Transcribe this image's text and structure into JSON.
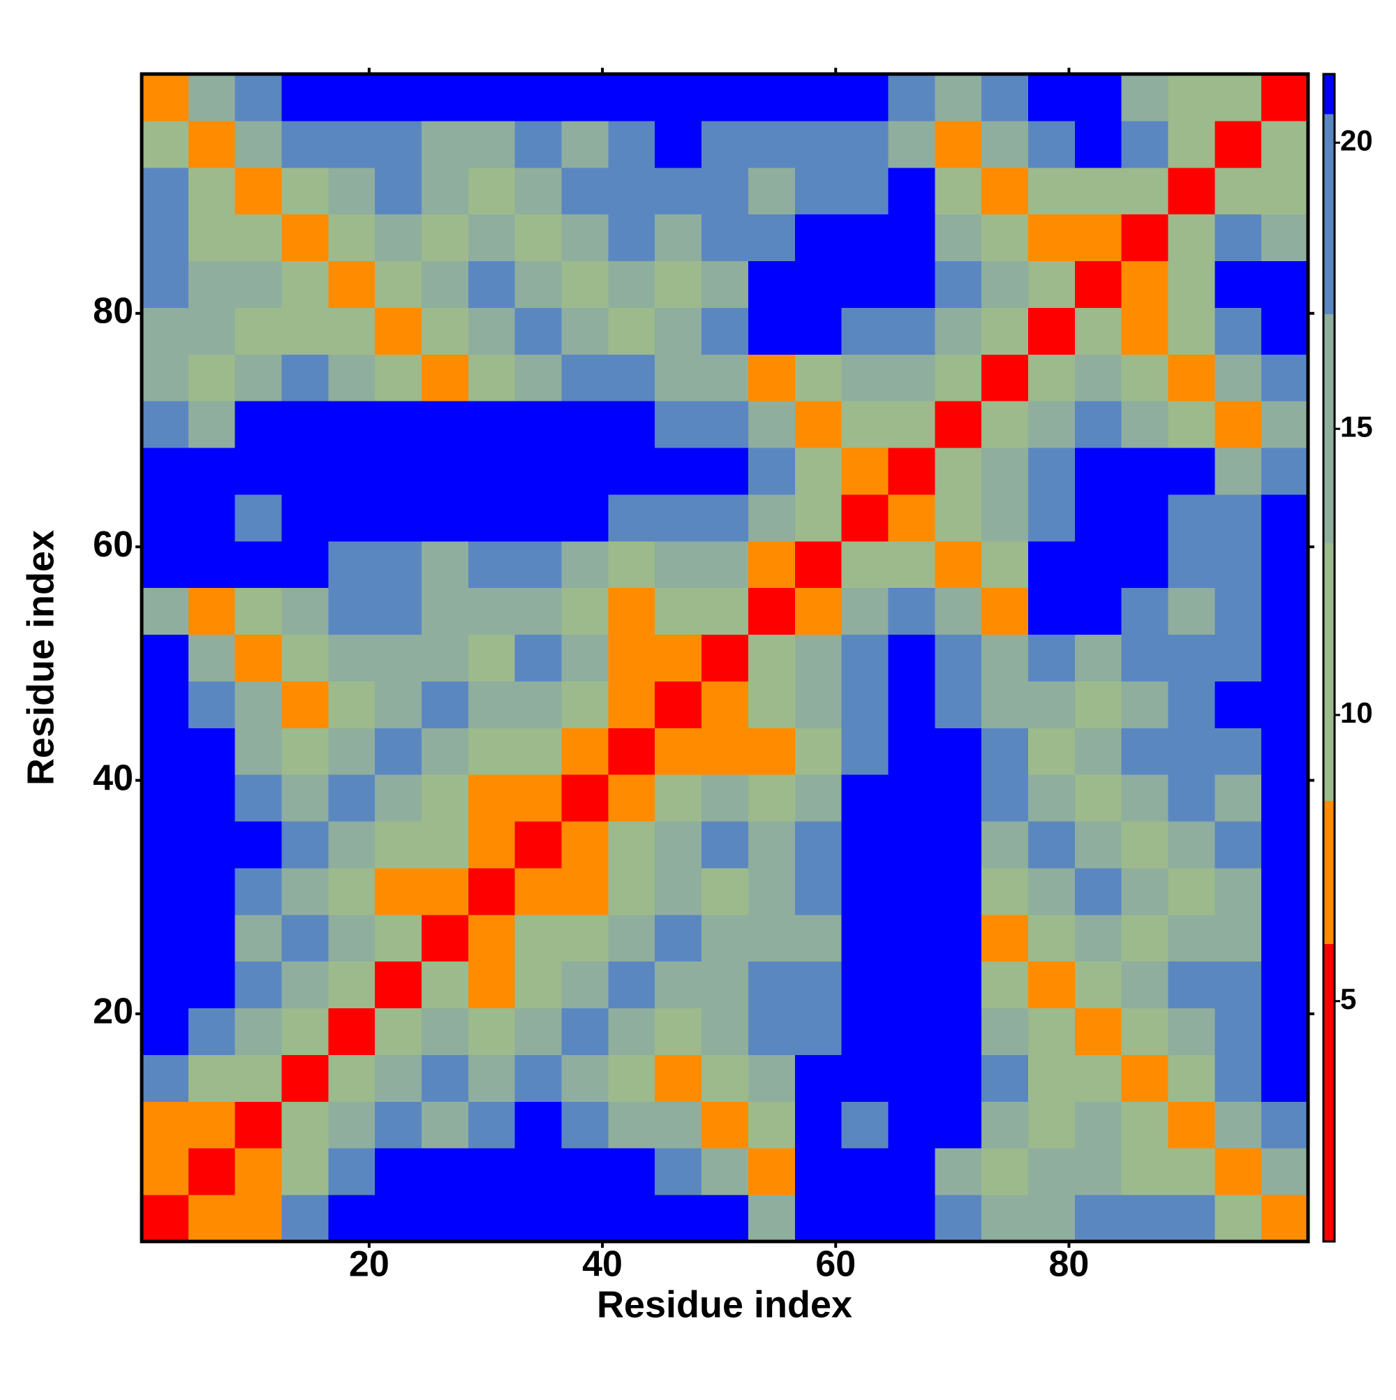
{
  "chart_data": {
    "type": "heatmap",
    "xlabel": "Residue index",
    "ylabel": "Residue index",
    "xbins": [
      0.5,
      4.5,
      8.5,
      12.5,
      16.5,
      20.5,
      24.5,
      28.5,
      32.5,
      36.5,
      40.5,
      44.5,
      48.5,
      52.5,
      56.5,
      60.5,
      64.5,
      68.5,
      72.5,
      76.5,
      80.5,
      84.5,
      88.5,
      92.5,
      96.5,
      100.5
    ],
    "ybins": [
      0.5,
      4.5,
      8.5,
      12.5,
      16.5,
      20.5,
      24.5,
      28.5,
      32.5,
      36.5,
      40.5,
      44.5,
      48.5,
      52.5,
      56.5,
      60.5,
      64.5,
      68.5,
      72.5,
      76.5,
      80.5,
      84.5,
      88.5,
      92.5,
      96.5,
      100.5
    ],
    "xlim": [
      0.5,
      100.5
    ],
    "ylim": [
      0.5,
      100.5
    ],
    "xticks": [
      20,
      40,
      60,
      80
    ],
    "yticks": [
      20,
      40,
      60,
      80
    ],
    "values": [
      [
        4,
        7,
        7,
        17,
        21,
        21,
        21,
        21,
        21,
        21,
        21,
        21,
        21,
        14,
        21,
        21,
        21,
        17,
        14,
        14,
        17,
        17,
        17,
        11,
        7
      ],
      [
        7,
        4,
        7,
        11,
        17,
        21,
        21,
        21,
        21,
        21,
        21,
        17,
        14,
        7,
        21,
        21,
        21,
        14,
        11,
        14,
        14,
        11,
        11,
        7,
        14
      ],
      [
        7,
        7,
        4,
        11,
        14,
        17,
        14,
        17,
        21,
        17,
        14,
        14,
        7,
        11,
        21,
        17,
        21,
        21,
        14,
        11,
        14,
        11,
        7,
        14,
        17
      ],
      [
        17,
        11,
        11,
        4,
        11,
        14,
        17,
        14,
        17,
        14,
        11,
        7,
        11,
        14,
        21,
        21,
        21,
        21,
        17,
        11,
        11,
        7,
        11,
        17,
        21
      ],
      [
        21,
        17,
        14,
        11,
        4,
        11,
        14,
        11,
        14,
        17,
        14,
        11,
        14,
        17,
        17,
        21,
        21,
        21,
        14,
        11,
        7,
        11,
        14,
        17,
        21
      ],
      [
        21,
        21,
        17,
        14,
        11,
        4,
        11,
        7,
        11,
        14,
        17,
        14,
        14,
        17,
        17,
        21,
        21,
        21,
        11,
        7,
        11,
        14,
        17,
        17,
        21
      ],
      [
        21,
        21,
        14,
        17,
        14,
        11,
        4,
        7,
        11,
        11,
        14,
        17,
        14,
        14,
        14,
        21,
        21,
        21,
        7,
        11,
        14,
        11,
        14,
        14,
        21
      ],
      [
        21,
        21,
        17,
        14,
        11,
        7,
        7,
        4,
        7,
        7,
        11,
        14,
        11,
        14,
        17,
        21,
        21,
        21,
        11,
        14,
        17,
        14,
        11,
        14,
        21
      ],
      [
        21,
        21,
        21,
        17,
        14,
        11,
        11,
        7,
        4,
        7,
        11,
        14,
        17,
        14,
        17,
        21,
        21,
        21,
        14,
        17,
        14,
        11,
        14,
        17,
        21
      ],
      [
        21,
        21,
        17,
        14,
        17,
        14,
        11,
        7,
        7,
        4,
        7,
        11,
        14,
        11,
        14,
        21,
        21,
        21,
        17,
        14,
        11,
        14,
        17,
        14,
        21
      ],
      [
        21,
        21,
        14,
        11,
        14,
        17,
        14,
        11,
        11,
        7,
        4,
        7,
        7,
        7,
        11,
        17,
        21,
        21,
        17,
        11,
        14,
        17,
        17,
        17,
        21
      ],
      [
        21,
        17,
        14,
        7,
        11,
        14,
        17,
        14,
        14,
        11,
        7,
        4,
        7,
        11,
        14,
        17,
        21,
        17,
        14,
        14,
        11,
        14,
        17,
        21,
        21
      ],
      [
        21,
        14,
        7,
        11,
        14,
        14,
        14,
        11,
        17,
        14,
        7,
        7,
        4,
        11,
        14,
        17,
        21,
        17,
        14,
        17,
        14,
        17,
        17,
        17,
        21
      ],
      [
        14,
        7,
        11,
        14,
        17,
        17,
        14,
        14,
        14,
        11,
        7,
        11,
        11,
        4,
        7,
        14,
        17,
        14,
        7,
        21,
        21,
        17,
        14,
        17,
        21
      ],
      [
        21,
        21,
        21,
        21,
        17,
        17,
        14,
        17,
        17,
        14,
        11,
        14,
        14,
        7,
        4,
        11,
        11,
        7,
        11,
        21,
        21,
        21,
        17,
        17,
        21
      ],
      [
        21,
        21,
        17,
        21,
        21,
        21,
        21,
        21,
        21,
        21,
        17,
        17,
        17,
        14,
        11,
        4,
        7,
        11,
        14,
        17,
        21,
        21,
        17,
        17,
        21
      ],
      [
        21,
        21,
        21,
        21,
        21,
        21,
        21,
        21,
        21,
        21,
        21,
        21,
        21,
        17,
        11,
        7,
        4,
        11,
        14,
        17,
        21,
        21,
        21,
        14,
        17
      ],
      [
        17,
        14,
        21,
        21,
        21,
        21,
        21,
        21,
        21,
        21,
        21,
        17,
        17,
        14,
        7,
        11,
        11,
        4,
        11,
        14,
        17,
        14,
        11,
        7,
        14
      ],
      [
        14,
        11,
        14,
        17,
        14,
        11,
        7,
        11,
        14,
        17,
        17,
        14,
        14,
        7,
        11,
        14,
        14,
        11,
        4,
        11,
        14,
        11,
        7,
        14,
        17
      ],
      [
        14,
        14,
        11,
        11,
        11,
        7,
        11,
        14,
        17,
        14,
        11,
        14,
        17,
        21,
        21,
        17,
        17,
        14,
        11,
        4,
        11,
        7,
        11,
        17,
        21
      ],
      [
        17,
        14,
        14,
        11,
        7,
        11,
        14,
        17,
        14,
        11,
        14,
        11,
        14,
        21,
        21,
        21,
        21,
        17,
        14,
        11,
        4,
        7,
        11,
        21,
        21
      ],
      [
        17,
        11,
        11,
        7,
        11,
        14,
        11,
        14,
        11,
        14,
        17,
        14,
        17,
        17,
        21,
        21,
        21,
        14,
        11,
        7,
        7,
        4,
        11,
        17,
        14
      ],
      [
        17,
        11,
        7,
        11,
        14,
        17,
        14,
        11,
        14,
        17,
        17,
        17,
        17,
        14,
        17,
        17,
        21,
        11,
        7,
        11,
        11,
        11,
        4,
        11,
        11
      ],
      [
        11,
        7,
        14,
        17,
        17,
        17,
        14,
        14,
        17,
        14,
        17,
        21,
        17,
        17,
        17,
        17,
        14,
        7,
        14,
        17,
        21,
        17,
        11,
        4,
        11
      ],
      [
        7,
        14,
        17,
        21,
        21,
        21,
        21,
        21,
        21,
        21,
        21,
        21,
        21,
        21,
        21,
        21,
        17,
        14,
        17,
        21,
        21,
        14,
        11,
        11,
        4
      ]
    ],
    "colorbar": {
      "lim": [
        0.8,
        21.2
      ],
      "ticks": [
        5,
        10,
        15,
        20
      ],
      "colorscale": [
        [
          0.8,
          "#ff0000"
        ],
        [
          6,
          "#ff8c00"
        ],
        [
          8.5,
          "#9cba8c"
        ],
        [
          13,
          "#8fae9d"
        ],
        [
          17,
          "#5b87c1"
        ],
        [
          20.5,
          "#0000ff"
        ]
      ]
    }
  }
}
